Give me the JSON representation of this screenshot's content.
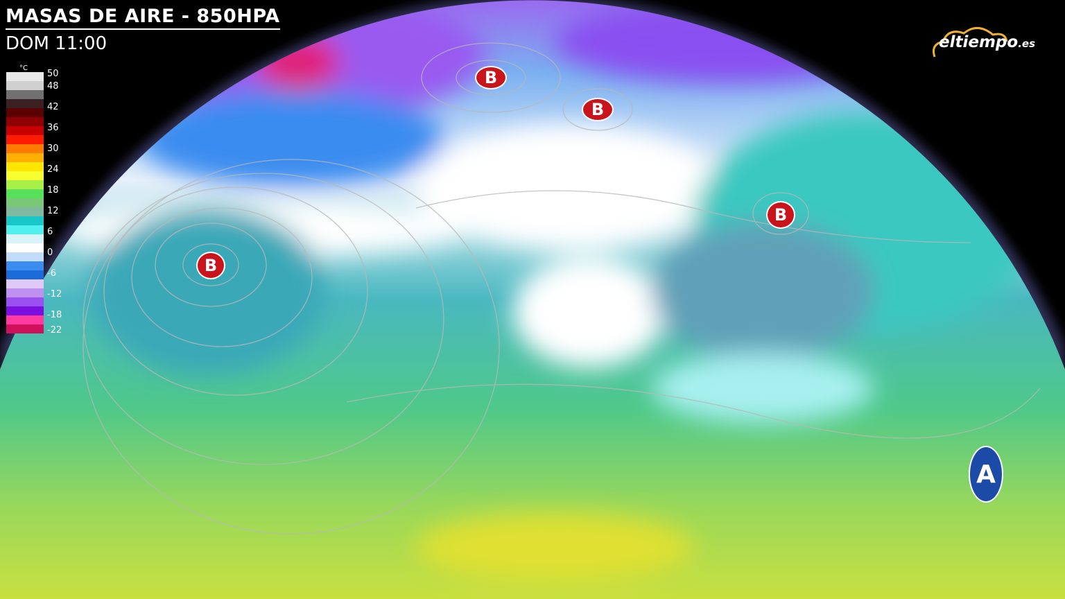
{
  "header": {
    "title": "MASAS DE AIRE - 850HPA",
    "time": "DOM 11:00"
  },
  "legend": {
    "unit": "°C",
    "ticks": [
      "50",
      "48",
      "42",
      "36",
      "30",
      "24",
      "18",
      "12",
      "6",
      "0",
      "-6",
      "-12",
      "-18",
      "-22"
    ],
    "colors": [
      "#e8e8e8",
      "#d0d0d0",
      "#707070",
      "#3a2020",
      "#5a0000",
      "#900000",
      "#c80000",
      "#ff1a00",
      "#ff7a00",
      "#ffb000",
      "#ffe600",
      "#f8ff30",
      "#a8f048",
      "#58e05a",
      "#78c878",
      "#80b8a0",
      "#18c8c8",
      "#50f0f0",
      "#d8f4f8",
      "#ffffff",
      "#c0dcf8",
      "#3a8cf0",
      "#1a6ad8",
      "#e0c8f8",
      "#c090f0",
      "#9a50f0",
      "#7a10e0",
      "#ff3aa0",
      "#d0105a"
    ]
  },
  "logo": {
    "text": "eltiempo",
    "suffix": ".es"
  },
  "pressure_centers": [
    {
      "type": "low",
      "label": "B"
    },
    {
      "type": "low",
      "label": "B"
    },
    {
      "type": "low",
      "label": "B"
    },
    {
      "type": "low",
      "label": "B"
    },
    {
      "type": "high",
      "label": "A"
    }
  ]
}
